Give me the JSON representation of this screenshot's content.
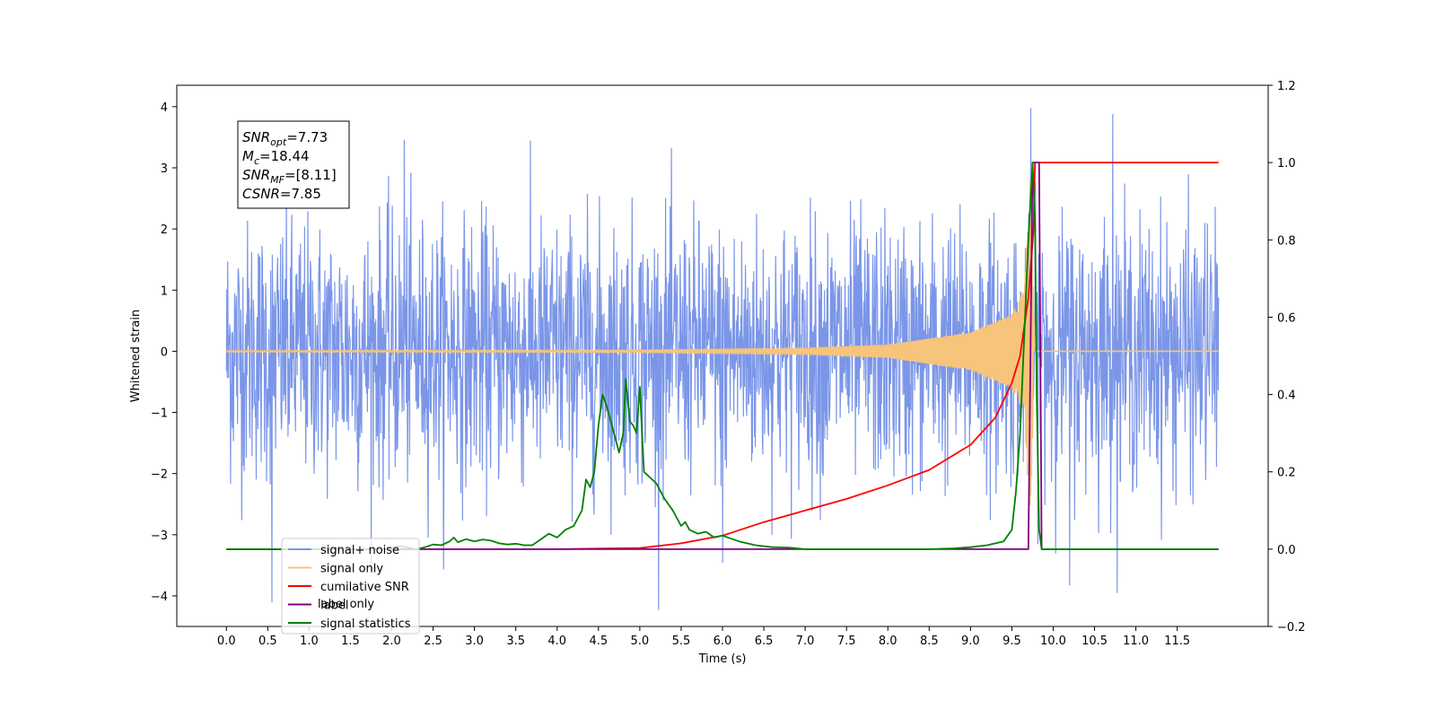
{
  "chart_data": {
    "type": "line",
    "xlabel": "Time (s)",
    "ylabel_left": "Whitened strain",
    "ylim_left": [
      -4.5,
      4.35
    ],
    "ylim_right": [
      -0.2,
      1.2
    ],
    "xlim": [
      -0.6,
      12.6
    ],
    "x_ticks": [
      "0.0",
      "0.5",
      "1.0",
      "1.5",
      "2.0",
      "2.5",
      "3.0",
      "3.5",
      "4.0",
      "4.5",
      "5.0",
      "5.5",
      "6.0",
      "6.5",
      "7.0",
      "7.5",
      "8.0",
      "8.5",
      "9.0",
      "9.5",
      "10.0",
      "10.5",
      "11.0",
      "11.5"
    ],
    "y_ticks_left": [
      "4",
      "3",
      "2",
      "1",
      "0",
      "−1",
      "−2",
      "−3",
      "−4"
    ],
    "y_ticks_right": [
      "1.2",
      "1.0",
      "0.8",
      "0.6",
      "0.4",
      "0.2",
      "0.0",
      "−0.2"
    ],
    "annotation": {
      "lines": [
        {
          "main": "SNR",
          "sub": "opt",
          "rest": "=7.73"
        },
        {
          "main": "M",
          "sub": "c",
          "rest": "=18.44"
        },
        {
          "main": "SNR",
          "sub": "MF",
          "rest": "=[8.11]"
        },
        {
          "main": "CSNR",
          "sub": "",
          "rest": "=7.85"
        }
      ]
    },
    "legend": {
      "placement": "lower-left",
      "entries": [
        {
          "label": "signal+ noise",
          "color": "#7b96e8"
        },
        {
          "label": "signal only",
          "color": "#f6c47a"
        },
        {
          "label": "cumilative SNR",
          "color": "#ff0000"
        },
        {
          "label": "label",
          "color": "#800080"
        },
        {
          "label": "signal statistics",
          "color": "#008000"
        }
      ],
      "hidden_behind_legend": "label only"
    },
    "series": [
      {
        "name": "signal+ noise",
        "axis": "left",
        "color": "#7b96e8",
        "x_start": 0.0,
        "x_end": 12.0,
        "noise_std": 1.05,
        "sample_count": 2400,
        "notable_spikes": [
          {
            "x": 0.55,
            "y": -4.1
          },
          {
            "x": 2.15,
            "y": 3.45
          },
          {
            "x": 6.0,
            "y": -3.45
          },
          {
            "x": 9.73,
            "y": 3.97
          },
          {
            "x": 10.2,
            "y": -3.82
          },
          {
            "x": 10.72,
            "y": 3.87
          }
        ]
      },
      {
        "name": "signal only",
        "axis": "left",
        "color": "#f6c47a",
        "description_points": [
          {
            "x": 0.0,
            "envelope": 0.01
          },
          {
            "x": 5.0,
            "envelope": 0.02
          },
          {
            "x": 7.0,
            "envelope": 0.05
          },
          {
            "x": 8.0,
            "envelope": 0.1
          },
          {
            "x": 9.0,
            "envelope": 0.3
          },
          {
            "x": 9.5,
            "envelope": 0.6
          },
          {
            "x": 9.65,
            "envelope": 1.0
          },
          {
            "x": 9.72,
            "envelope": 2.8
          },
          {
            "x": 9.78,
            "envelope": 0.0
          },
          {
            "x": 12.0,
            "envelope": 0.0
          }
        ]
      },
      {
        "name": "cumilative SNR",
        "axis": "right",
        "color": "#ff0000",
        "points": [
          [
            0.0,
            0.0
          ],
          [
            4.0,
            0.0
          ],
          [
            5.0,
            0.003
          ],
          [
            5.5,
            0.015
          ],
          [
            6.0,
            0.035
          ],
          [
            6.5,
            0.07
          ],
          [
            7.0,
            0.1
          ],
          [
            7.5,
            0.13
          ],
          [
            8.0,
            0.165
          ],
          [
            8.5,
            0.205
          ],
          [
            9.0,
            0.27
          ],
          [
            9.3,
            0.34
          ],
          [
            9.5,
            0.43
          ],
          [
            9.6,
            0.5
          ],
          [
            9.7,
            0.65
          ],
          [
            9.76,
            0.82
          ],
          [
            9.78,
            1.0
          ],
          [
            12.0,
            1.0
          ]
        ]
      },
      {
        "name": "label",
        "axis": "right",
        "color": "#800080",
        "points": [
          [
            0.0,
            0.0
          ],
          [
            9.7,
            0.0
          ],
          [
            9.75,
            1.0
          ],
          [
            9.83,
            1.0
          ],
          [
            9.86,
            0.0
          ],
          [
            12.0,
            0.0
          ]
        ]
      },
      {
        "name": "signal statistics",
        "axis": "right",
        "color": "#008000",
        "points": [
          [
            0.0,
            0.0
          ],
          [
            1.9,
            0.0
          ],
          [
            2.0,
            0.002
          ],
          [
            2.1,
            0.008
          ],
          [
            2.2,
            0.004
          ],
          [
            2.3,
            0.0
          ],
          [
            2.4,
            0.005
          ],
          [
            2.5,
            0.012
          ],
          [
            2.6,
            0.01
          ],
          [
            2.7,
            0.02
          ],
          [
            2.75,
            0.03
          ],
          [
            2.8,
            0.018
          ],
          [
            2.9,
            0.026
          ],
          [
            3.0,
            0.02
          ],
          [
            3.1,
            0.025
          ],
          [
            3.2,
            0.022
          ],
          [
            3.3,
            0.015
          ],
          [
            3.4,
            0.012
          ],
          [
            3.5,
            0.014
          ],
          [
            3.6,
            0.01
          ],
          [
            3.7,
            0.01
          ],
          [
            3.8,
            0.025
          ],
          [
            3.9,
            0.04
          ],
          [
            4.0,
            0.03
          ],
          [
            4.1,
            0.05
          ],
          [
            4.2,
            0.06
          ],
          [
            4.3,
            0.1
          ],
          [
            4.35,
            0.18
          ],
          [
            4.4,
            0.16
          ],
          [
            4.45,
            0.2
          ],
          [
            4.5,
            0.32
          ],
          [
            4.55,
            0.4
          ],
          [
            4.6,
            0.37
          ],
          [
            4.65,
            0.33
          ],
          [
            4.7,
            0.29
          ],
          [
            4.75,
            0.25
          ],
          [
            4.8,
            0.3
          ],
          [
            4.83,
            0.44
          ],
          [
            4.88,
            0.33
          ],
          [
            4.92,
            0.32
          ],
          [
            4.96,
            0.3
          ],
          [
            5.0,
            0.42
          ],
          [
            5.05,
            0.2
          ],
          [
            5.1,
            0.19
          ],
          [
            5.2,
            0.17
          ],
          [
            5.3,
            0.13
          ],
          [
            5.4,
            0.1
          ],
          [
            5.5,
            0.06
          ],
          [
            5.55,
            0.07
          ],
          [
            5.6,
            0.05
          ],
          [
            5.7,
            0.04
          ],
          [
            5.8,
            0.045
          ],
          [
            5.9,
            0.03
          ],
          [
            6.0,
            0.035
          ],
          [
            6.2,
            0.02
          ],
          [
            6.4,
            0.01
          ],
          [
            6.6,
            0.005
          ],
          [
            6.8,
            0.004
          ],
          [
            7.0,
            0.0
          ],
          [
            8.5,
            0.0
          ],
          [
            8.8,
            0.002
          ],
          [
            9.0,
            0.005
          ],
          [
            9.2,
            0.01
          ],
          [
            9.3,
            0.015
          ],
          [
            9.4,
            0.02
          ],
          [
            9.5,
            0.05
          ],
          [
            9.55,
            0.15
          ],
          [
            9.6,
            0.3
          ],
          [
            9.65,
            0.55
          ],
          [
            9.7,
            0.8
          ],
          [
            9.75,
            1.0
          ],
          [
            9.78,
            0.85
          ],
          [
            9.8,
            0.4
          ],
          [
            9.83,
            0.05
          ],
          [
            9.86,
            0.0
          ],
          [
            12.0,
            0.0
          ]
        ]
      }
    ]
  }
}
